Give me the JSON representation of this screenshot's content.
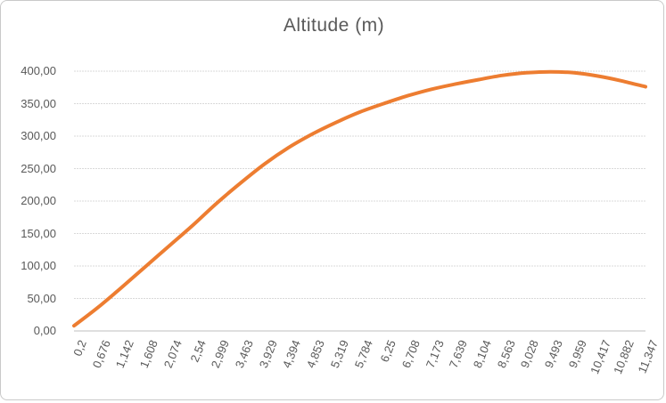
{
  "window": {
    "background_color": "#ffffff",
    "frame_border_color": "#c9c9c9"
  },
  "chart_data": {
    "type": "line",
    "title": "Altitude (m)",
    "xlabel": "",
    "ylabel": "",
    "categories": [
      "0,2",
      "0,676",
      "1,142",
      "1,608",
      "2,074",
      "2,54",
      "2,999",
      "3,463",
      "3,929",
      "4,394",
      "4,853",
      "5,319",
      "5,784",
      "6,25",
      "6,708",
      "7,173",
      "7,639",
      "8,104",
      "8,563",
      "9,028",
      "9,493",
      "9,959",
      "10,417",
      "10,882",
      "11,347"
    ],
    "values": [
      8,
      36,
      67,
      99,
      131,
      163,
      197,
      228,
      257,
      282,
      303,
      321,
      337,
      350,
      362,
      372,
      380,
      387,
      393.5,
      397.5,
      399,
      397.5,
      392.5,
      385,
      376
    ],
    "ylim": [
      0,
      400
    ],
    "y_tick_step": 50,
    "y_tick_labels": [
      "0,00",
      "50,00",
      "100,00",
      "150,00",
      "200,00",
      "250,00",
      "300,00",
      "350,00",
      "400,00"
    ],
    "grid": true,
    "legend": "none",
    "colors": {
      "series": "#ED7D31",
      "gridline": "#D9D9D9",
      "axis_line": "#BFBFBF",
      "text": "#595959"
    }
  }
}
